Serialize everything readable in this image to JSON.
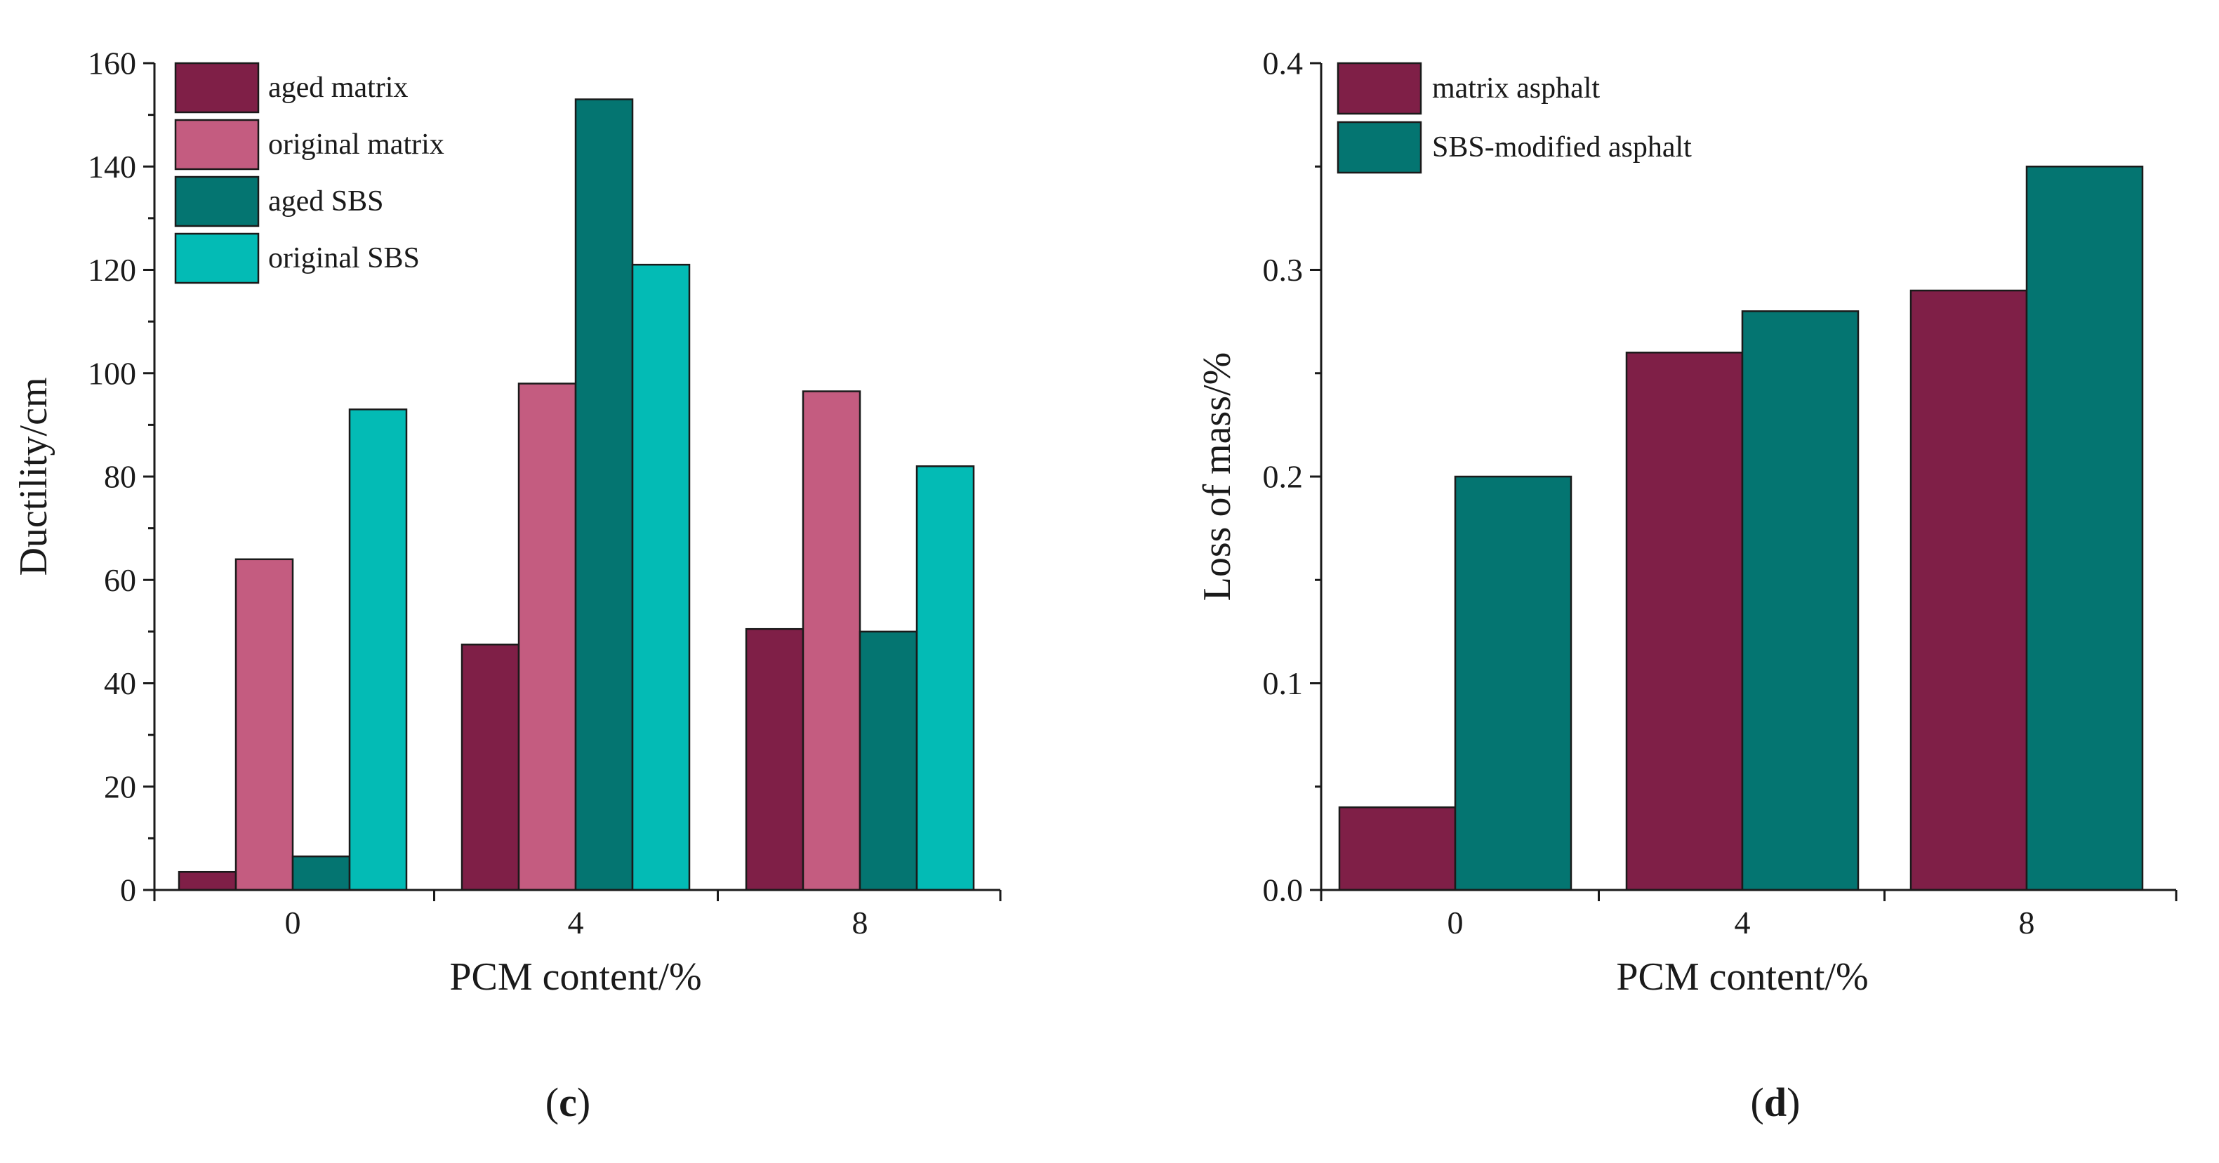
{
  "chart_data": [
    {
      "type": "bar",
      "panel_label": "c",
      "xlabel": "PCM content/%",
      "ylabel": "Ductility/cm",
      "ylim": [
        0,
        160
      ],
      "yticks": [
        "0",
        "20",
        "40",
        "60",
        "80",
        "100",
        "120",
        "140",
        "160"
      ],
      "categories": [
        "0",
        "4",
        "8"
      ],
      "legend_position": "top-left",
      "series": [
        {
          "name": "aged matrix",
          "color": "#7f1f47",
          "values": [
            3.5,
            47.5,
            50.5
          ]
        },
        {
          "name": "original matrix",
          "color": "#c45c80",
          "values": [
            64,
            98,
            96.5
          ]
        },
        {
          "name": "aged SBS",
          "color": "#047571",
          "values": [
            6.5,
            153,
            50
          ]
        },
        {
          "name": "original SBS",
          "color": "#03bbb5",
          "values": [
            93,
            121,
            82
          ]
        }
      ]
    },
    {
      "type": "bar",
      "panel_label": "d",
      "xlabel": "PCM content/%",
      "ylabel": "Loss of mass/%",
      "ylim": [
        0,
        0.4
      ],
      "yticks": [
        "0.0",
        "0.1",
        "0.2",
        "0.3",
        "0.4"
      ],
      "categories": [
        "0",
        "4",
        "8"
      ],
      "legend_position": "top-left",
      "series": [
        {
          "name": "matrix asphalt",
          "color": "#7f1f47",
          "values": [
            0.04,
            0.26,
            0.29
          ]
        },
        {
          "name": "SBS-modified asphalt",
          "color": "#047571",
          "values": [
            0.2,
            0.28,
            0.35
          ]
        }
      ]
    }
  ]
}
